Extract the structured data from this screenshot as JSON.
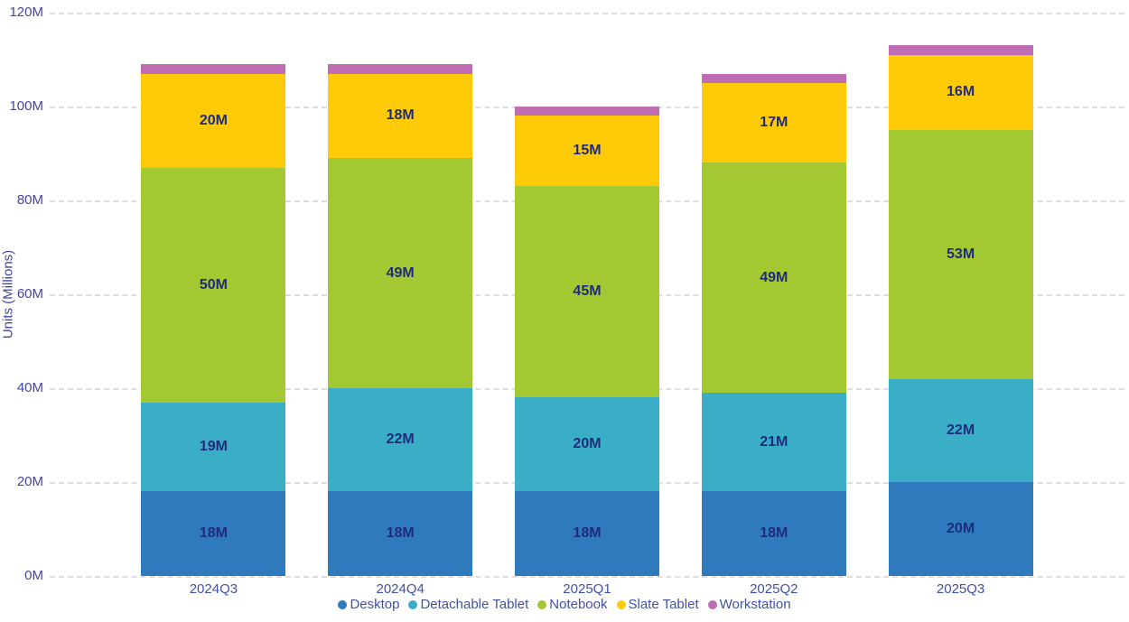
{
  "chart_data": {
    "type": "bar",
    "stacked": true,
    "categories": [
      "2024Q3",
      "2024Q4",
      "2025Q1",
      "2025Q2",
      "2025Q3"
    ],
    "series": [
      {
        "name": "Desktop",
        "color": "#2E7ABD",
        "values": [
          18,
          18,
          18,
          18,
          20
        ],
        "labels": [
          "18M",
          "18M",
          "18M",
          "18M",
          "20M"
        ]
      },
      {
        "name": "Detachable Tablet",
        "color": "#3AAEC6",
        "values": [
          19,
          22,
          20,
          21,
          22
        ],
        "labels": [
          "19M",
          "22M",
          "20M",
          "21M",
          "22M"
        ]
      },
      {
        "name": "Notebook",
        "color": "#A3C832",
        "values": [
          50,
          49,
          45,
          49,
          53
        ],
        "labels": [
          "50M",
          "49M",
          "45M",
          "49M",
          "53M"
        ]
      },
      {
        "name": "Slate Tablet",
        "color": "#FFCA08",
        "values": [
          20,
          18,
          15,
          17,
          16
        ],
        "labels": [
          "20M",
          "18M",
          "15M",
          "17M",
          "16M"
        ]
      },
      {
        "name": "Workstation",
        "color": "#BF6DB2",
        "values": [
          2,
          2,
          2,
          2,
          2
        ],
        "labels": [
          "",
          "",
          "",
          "",
          ""
        ]
      }
    ],
    "ylabel": "Units (Millions)",
    "ylim": [
      0,
      120
    ],
    "yticks": [
      0,
      20,
      40,
      60,
      80,
      100,
      120
    ],
    "ytick_labels": [
      "0M",
      "20M",
      "40M",
      "60M",
      "80M",
      "100M",
      "120M"
    ],
    "grid": "horizontal-dashed",
    "legend_position": "bottom",
    "legend": [
      "Desktop",
      "Detachable Tablet",
      "Notebook",
      "Slate Tablet",
      "Workstation"
    ]
  },
  "styles": {
    "background": "#FFFFFF",
    "grid_color": "#DEDEDE",
    "ytick_color": "#41459E",
    "xtick_color": "#4052A8",
    "legend_text_color": "#4052A8",
    "bar_label_color": "#1F2C7C"
  }
}
